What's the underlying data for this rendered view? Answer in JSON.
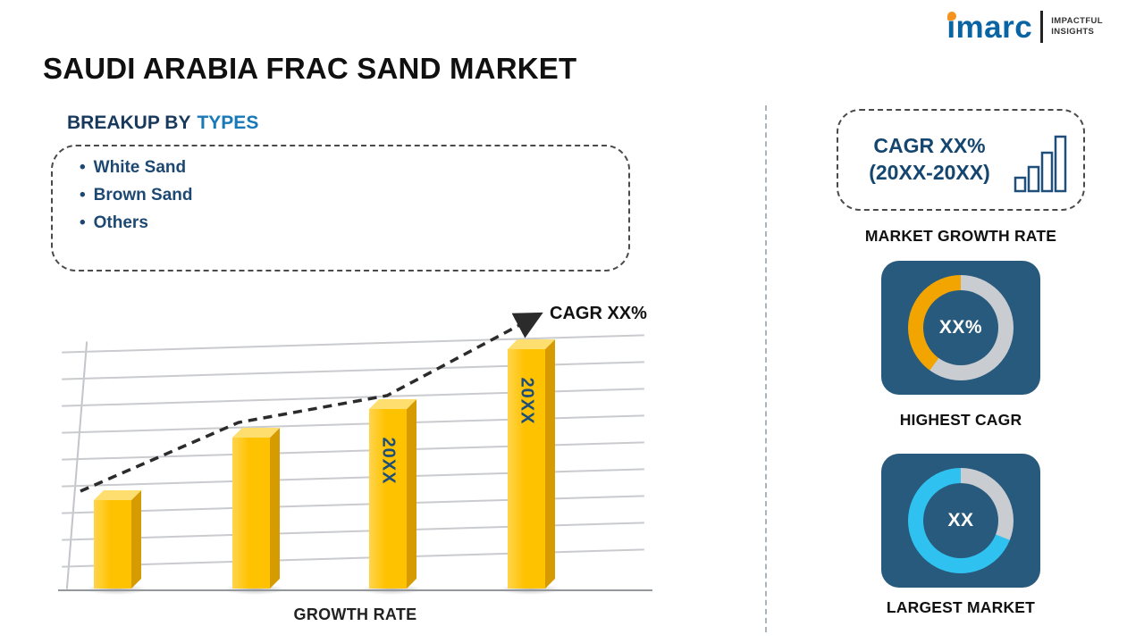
{
  "logo": {
    "brand": "imarc",
    "tagline": [
      "IMPACTFUL",
      "INSIGHTS"
    ]
  },
  "title": "SAUDI ARABIA FRAC SAND MARKET",
  "breakup": {
    "label": "BREAKUP BY",
    "highlight": "TYPES",
    "items": [
      "White Sand",
      "Brown Sand",
      "Others"
    ]
  },
  "chart_data": {
    "type": "bar",
    "title": "",
    "xlabel": "GROWTH RATE",
    "ylabel": "",
    "categories": [
      "",
      "",
      "20XX",
      "20XX"
    ],
    "values": [
      37,
      63,
      75,
      100
    ],
    "ylim": [
      0,
      100
    ],
    "grid": true,
    "bar_color": "#FFC200",
    "trend": {
      "label": "CAGR XX%",
      "shape": "dashed-arrow-ascending"
    }
  },
  "right_panel": {
    "growth_box": {
      "line1": "CAGR XX%",
      "line2": "(20XX-20XX)",
      "caption": "MARKET GROWTH RATE"
    },
    "highest_cagr": {
      "value": "XX%",
      "caption": "HIGHEST CAGR",
      "segments": [
        {
          "color": "#C9CDD2",
          "pct": 60
        },
        {
          "color": "#F2A400",
          "pct": 40
        }
      ]
    },
    "largest_market": {
      "value": "XX",
      "caption": "LARGEST MARKET",
      "segments": [
        {
          "color": "#C9CDD2",
          "pct": 31
        },
        {
          "color": "#2FC2F0",
          "pct": 69
        }
      ]
    }
  },
  "colors": {
    "navy_text": "#1D4872",
    "accent_blue": "#1878B8",
    "bar_yellow": "#FFC200",
    "card_navy": "#275A7C",
    "ring_orange": "#F2A400",
    "ring_cyan": "#2FC2F0",
    "logo_blue": "#0A64A4",
    "logo_orange": "#F6921E"
  }
}
